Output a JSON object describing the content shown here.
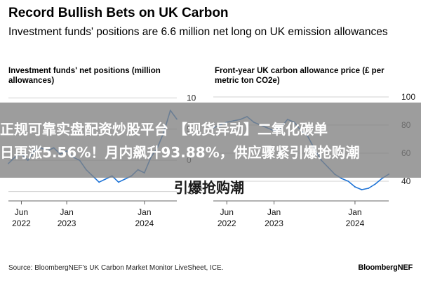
{
  "header": {
    "title": "Record Bullish Bets on UK Carbon",
    "subtitle": "Investment funds' positions are 6.6 million net long on UK emission allowances"
  },
  "overlay": {
    "line1": "正规可靠实盘配资炒股平台 【现货异动】二氧化碳单",
    "line2": "日再涨5.56%！月内飙升93.88%，供应骤紧引爆抢购潮",
    "line3": "引爆抢购潮"
  },
  "footer": {
    "source": "Source: BloombergNEF's UK Carbon Market Monitor LiveSheet, ICE.",
    "brand": "BloombergNEF"
  },
  "chart_data": [
    {
      "type": "line",
      "title": "Investment funds' net positions (million allowances)",
      "xlabel": "",
      "ylabel": "",
      "x_ticks": [
        {
          "label": "Jun",
          "label2": "2022"
        },
        {
          "label": "Jan",
          "label2": "2023"
        },
        {
          "label": "Jan",
          "label2": "2024"
        }
      ],
      "y_ticks": [
        "10",
        "5",
        "0",
        "-5"
      ],
      "ylim": [
        -6.5,
        11.5
      ],
      "grid": true,
      "color": "#1e73d6",
      "series": [
        {
          "x": [
            "2022-04",
            "2022-05",
            "2022-06",
            "2022-07",
            "2022-08",
            "2022-09",
            "2022-10",
            "2022-11",
            "2022-12",
            "2023-01",
            "2023-02",
            "2023-03",
            "2023-04",
            "2023-05",
            "2023-06",
            "2023-07",
            "2023-08",
            "2023-09",
            "2023-10",
            "2023-11",
            "2023-12",
            "2024-01",
            "2024-02",
            "2024-03",
            "2024-04",
            "2024-05",
            "2024-06"
          ],
          "values": [
            -0.5,
            0.5,
            1.0,
            0.0,
            1.5,
            2.0,
            1.5,
            2.0,
            1.0,
            1.5,
            0.5,
            0.0,
            -1.5,
            -2.5,
            -3.5,
            -3.0,
            -2.5,
            -3.5,
            -3.0,
            -2.5,
            -1.5,
            -2.0,
            0.5,
            2.0,
            4.5,
            8.0,
            6.6
          ]
        }
      ]
    },
    {
      "type": "line",
      "title": "Front-year UK carbon allowance price (£ per metric ton CO2e)",
      "xlabel": "",
      "ylabel": "",
      "x_ticks": [
        {
          "label": "Jun",
          "label2": "2022"
        },
        {
          "label": "Jan",
          "label2": "2023"
        },
        {
          "label": "Jan",
          "label2": "2024"
        }
      ],
      "y_ticks": [
        "100",
        "80",
        "60",
        "40"
      ],
      "ylim": [
        26,
        106
      ],
      "grid": true,
      "color": "#1e73d6",
      "series": [
        {
          "x": [
            "2022-04",
            "2022-05",
            "2022-06",
            "2022-07",
            "2022-08",
            "2022-09",
            "2022-10",
            "2022-11",
            "2022-12",
            "2023-01",
            "2023-02",
            "2023-03",
            "2023-04",
            "2023-05",
            "2023-06",
            "2023-07",
            "2023-08",
            "2023-09",
            "2023-10",
            "2023-11",
            "2023-12",
            "2024-01",
            "2024-02",
            "2024-03",
            "2024-04",
            "2024-05",
            "2024-06"
          ],
          "values": [
            78,
            80,
            82,
            83,
            84,
            86,
            82,
            80,
            78,
            76,
            78,
            84,
            82,
            76,
            72,
            63,
            55,
            50,
            45,
            42,
            40,
            36,
            34,
            35,
            38,
            42,
            45
          ]
        }
      ]
    }
  ]
}
